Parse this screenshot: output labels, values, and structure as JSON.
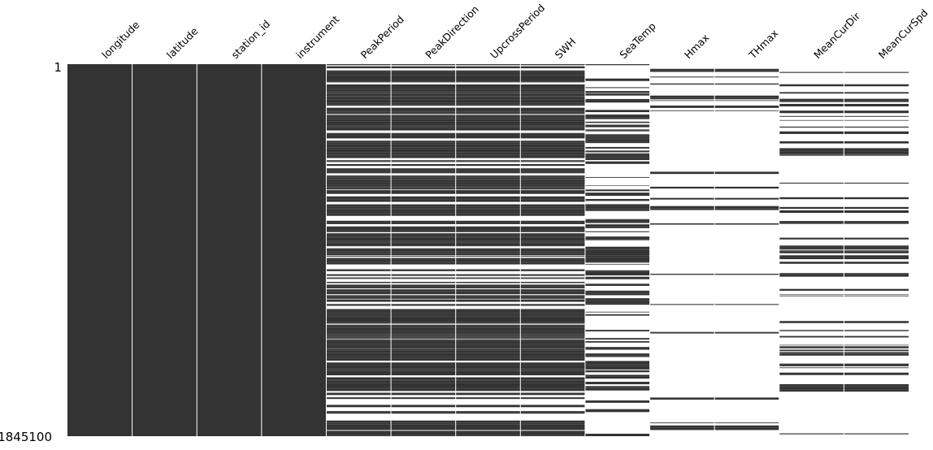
{
  "chart_data": {
    "type": "heatmap",
    "title": "",
    "row_range": [
      1,
      1845100
    ],
    "row_tick_labels": [
      "1",
      "1845100"
    ],
    "columns": [
      "longitude",
      "latitude",
      "station_id",
      "instrument",
      "PeakPeriod",
      "PeakDirection",
      "UpcrossPeriod",
      "SWH",
      "SeaTemp",
      "Hmax",
      "THmax",
      "MeanCurDir",
      "MeanCurSpd"
    ],
    "presence_fraction": [
      1.0,
      1.0,
      1.0,
      1.0,
      0.8,
      0.8,
      0.8,
      0.8,
      0.4,
      0.15,
      0.15,
      0.3,
      0.3
    ],
    "colors": {
      "present": "#333333",
      "missing": "#ffffff",
      "separator": "#ffffff"
    }
  }
}
